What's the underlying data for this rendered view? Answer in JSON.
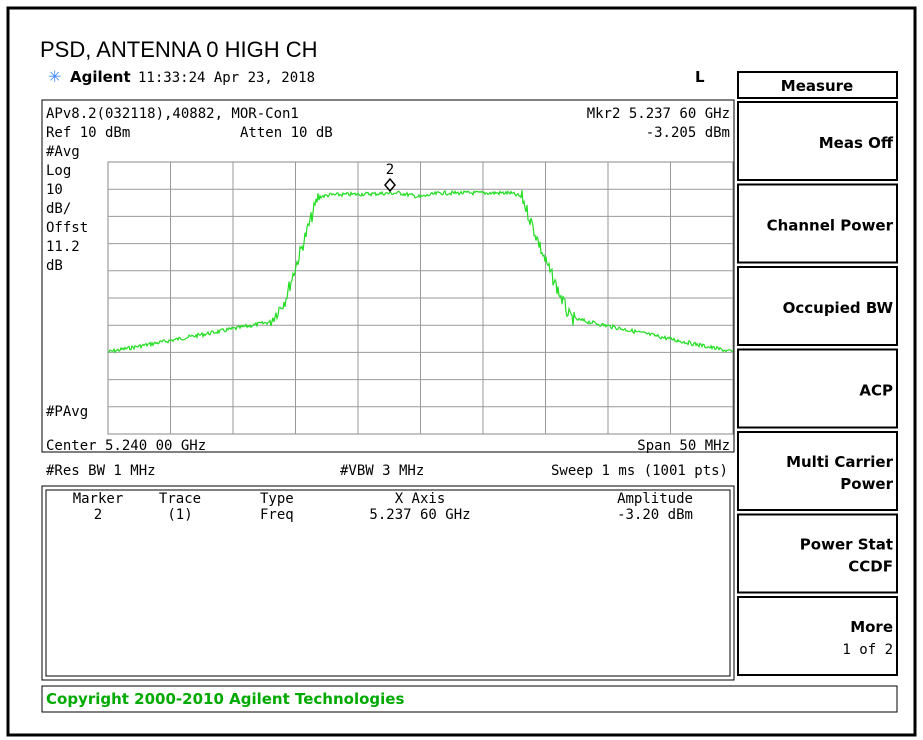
{
  "title": "PSD, ANTENNA 0 HIGH CH",
  "status": {
    "brand": "Agilent",
    "time": "11:33:24  Apr 23, 2018",
    "mode": "L"
  },
  "info": {
    "id": "APv8.2(032118),40882, MOR-Con1",
    "marker": "Mkr2  5.237 60 GHz",
    "ref": "Ref 10 dBm",
    "atten": "Atten 10 dB",
    "amplitude": "-3.205 dBm"
  },
  "side_labels": [
    "#Avg",
    "Log",
    "10",
    "dB/",
    "Offst",
    "11.2",
    "dB"
  ],
  "bottom_label": "#PAvg",
  "marker_id": "2",
  "footer": {
    "center": "Center 5.240 00 GHz",
    "span": "Span 50 MHz",
    "rbw": "#Res BW 1 MHz",
    "vbw": "#VBW 3 MHz",
    "sweep": "Sweep 1 ms (1001 pts)"
  },
  "table": {
    "headers": [
      "Marker",
      "Trace",
      "Type",
      "X Axis",
      "Amplitude"
    ],
    "rows": [
      [
        "2",
        "(1)",
        "Freq",
        "5.237 60 GHz",
        "-3.20 dBm"
      ]
    ]
  },
  "menu": {
    "title": "Measure",
    "keys": [
      [
        "Meas Off"
      ],
      [
        "Channel Power"
      ],
      [
        "Occupied BW"
      ],
      [
        "ACP"
      ],
      [
        "Multi Carrier",
        "Power"
      ],
      [
        "Power Stat",
        "CCDF"
      ],
      [
        "More",
        "1 of 2"
      ]
    ]
  },
  "copyright": "Copyright 2000-2010 Agilent Technologies"
}
